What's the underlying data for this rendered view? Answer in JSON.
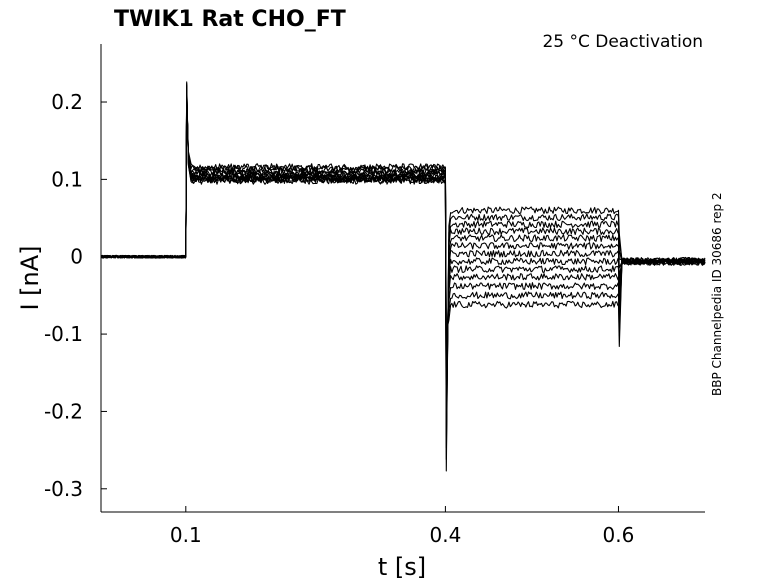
{
  "chart_data": {
    "type": "line",
    "title": "TWIK1  Rat  CHO_FT",
    "annotation": "25 °C  Deactivation",
    "side_label": "BBP Channelpedia ID 30686 rep 2",
    "xlabel": "t [s]",
    "ylabel": "I [nA]",
    "xlim": [
      0.002,
      0.7
    ],
    "ylim": [
      -0.33,
      0.275
    ],
    "xticks": [
      0.1,
      0.4,
      0.6
    ],
    "xtick_labels": [
      "0.1",
      "0.4",
      "0.6"
    ],
    "yticks": [
      0.2,
      0.1,
      0,
      -0.1,
      -0.2,
      -0.3
    ],
    "ytick_labels": [
      "0.2",
      "0.1",
      "0",
      "-0.1",
      "-0.2",
      "-0.3"
    ],
    "grid": false,
    "line_color": "#000000",
    "protocol": {
      "baseline": 0.0,
      "pulse1_start": 0.1,
      "pulse1_end": 0.4,
      "pulse2_end": 0.6,
      "transient_peak": 0.226,
      "transient_min": -0.277
    },
    "series": [
      {
        "values": [
          0.0,
          0.098,
          0.06,
          -0.004
        ]
      },
      {
        "values": [
          0.0,
          0.099,
          0.051,
          -0.004
        ]
      },
      {
        "values": [
          0.0,
          0.1,
          0.042,
          -0.005
        ]
      },
      {
        "values": [
          0.0,
          0.101,
          0.033,
          -0.005
        ]
      },
      {
        "values": [
          0.0,
          0.102,
          0.024,
          -0.005
        ]
      },
      {
        "values": [
          0.0,
          0.103,
          0.014,
          -0.006
        ]
      },
      {
        "values": [
          0.0,
          0.104,
          0.004,
          -0.006
        ]
      },
      {
        "values": [
          0.0,
          0.106,
          -0.006,
          -0.006
        ]
      },
      {
        "values": [
          0.0,
          0.108,
          -0.016,
          -0.007
        ]
      },
      {
        "values": [
          0.0,
          0.11,
          -0.026,
          -0.007
        ]
      },
      {
        "values": [
          0.0,
          0.112,
          -0.038,
          -0.007
        ]
      },
      {
        "values": [
          0.0,
          0.114,
          -0.05,
          -0.008
        ]
      },
      {
        "values": [
          0.0,
          0.116,
          -0.062,
          -0.008
        ]
      }
    ]
  }
}
